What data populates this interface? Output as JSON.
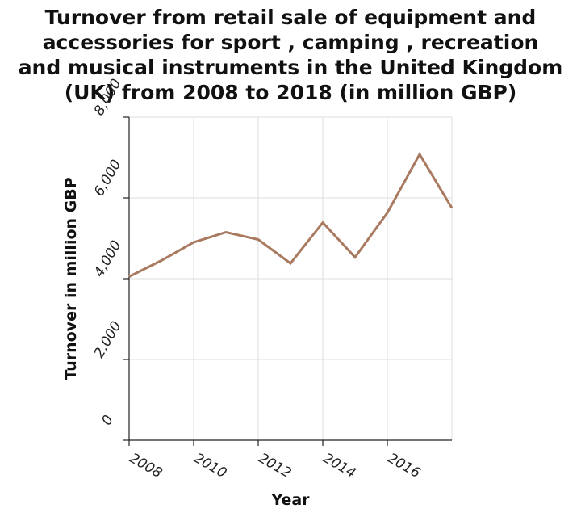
{
  "chart_data": {
    "type": "line",
    "title": "Turnover from retail sale of equipment and\naccessories for sport , camping , recreation\nand musical instruments in the United Kingdom\n(UK) from 2008 to 2018 (in million GBP)",
    "xlabel": "Year",
    "ylabel": "Turnover in million GBP",
    "xlim": [
      2008,
      2018
    ],
    "ylim": [
      0,
      8000
    ],
    "xticks": [
      2008,
      2010,
      2012,
      2014,
      2016
    ],
    "yticks": [
      0,
      2000,
      4000,
      6000,
      8000
    ],
    "xtick_labels": [
      "2008",
      "2010",
      "2012",
      "2014",
      "2016"
    ],
    "ytick_labels": [
      "0",
      "2,000",
      "4,000",
      "6,000",
      "8,000"
    ],
    "grid": true,
    "series": [
      {
        "color": "#a97a60",
        "x": [
          2008,
          2009,
          2010,
          2011,
          2012,
          2013,
          2014,
          2015,
          2016,
          2017,
          2018
        ],
        "y": [
          4050,
          4450,
          4900,
          5150,
          4970,
          4380,
          5390,
          4530,
          5630,
          7080,
          5750
        ]
      }
    ]
  }
}
